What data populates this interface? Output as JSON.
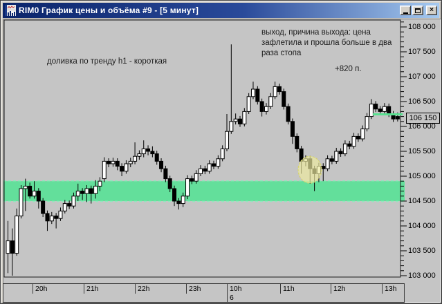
{
  "window": {
    "title": "RIM0 График цены и объёма #9 - [5 минут]",
    "controls": {
      "minimize": "_",
      "maximize": "▢",
      "close": "×"
    }
  },
  "annotations": {
    "trade_note": "доливка по тренду h1 - короткая",
    "exit_note_lines": [
      "выход, причина выхода: цена",
      "зафлетила и прошла больше в два",
      "раза стопа"
    ],
    "profit_note": "+820 п."
  },
  "colors": {
    "zone_green": "#63df9b",
    "zone_edge_green": "#8debbc",
    "price_line_green": "#59e090",
    "highlight_yellow_fill": "#efec9f",
    "highlight_yellow_edge": "#d6d370",
    "chart_bg": "#c5c5c5",
    "candle_up": "#ffffff",
    "candle_down": "#000000",
    "candle_stroke": "#000000"
  },
  "chart_data": {
    "type": "candlestick",
    "instrument": "RIM0",
    "timeframe": "5 минут",
    "y_axis": {
      "min": 103000,
      "max": 108000,
      "major_step": 500,
      "minor_step": 100,
      "tick_labels": [
        "108 000",
        "107 500",
        "107 000",
        "106 500",
        "106 000",
        "105 500",
        "105 000",
        "104 500",
        "104 000",
        "103 500",
        "103 000"
      ]
    },
    "x_axis": {
      "hour_labels": [
        "20h",
        "21h",
        "22h",
        "23h",
        "10h",
        "11h",
        "12h",
        "13h"
      ],
      "date_label": "6"
    },
    "current_price": {
      "label": "106 150",
      "value": 106150
    },
    "support_zone": {
      "price_top": 104900,
      "price_bottom": 104500
    },
    "highlight_ellipse": {
      "price_high": 105400,
      "price_low": 104860
    },
    "candles_ohlc": [
      [
        103450,
        104100,
        103050,
        103700
      ],
      [
        103700,
        103950,
        103000,
        103450
      ],
      [
        103450,
        104350,
        103400,
        104200
      ],
      [
        104200,
        104820,
        104150,
        104750
      ],
      [
        104750,
        104950,
        104300,
        104800
      ],
      [
        104800,
        104870,
        104550,
        104600
      ],
      [
        104600,
        104900,
        104550,
        104700
      ],
      [
        104700,
        104760,
        104350,
        104500
      ],
      [
        104500,
        104560,
        104180,
        104250
      ],
      [
        104250,
        104310,
        103900,
        104100
      ],
      [
        104100,
        104280,
        104040,
        104200
      ],
      [
        104200,
        104260,
        103950,
        104150
      ],
      [
        104150,
        104370,
        104100,
        104300
      ],
      [
        104300,
        104520,
        104250,
        104450
      ],
      [
        104450,
        104510,
        104340,
        104400
      ],
      [
        104400,
        104670,
        104350,
        104600
      ],
      [
        104600,
        104850,
        104500,
        104700
      ],
      [
        104700,
        104760,
        104520,
        104650
      ],
      [
        104650,
        104820,
        104480,
        104750
      ],
      [
        104750,
        104810,
        104450,
        104650
      ],
      [
        104650,
        104920,
        104550,
        104800
      ],
      [
        104800,
        104980,
        104700,
        104900
      ],
      [
        104950,
        105380,
        104880,
        105300
      ],
      [
        105300,
        105360,
        105180,
        105250
      ],
      [
        105250,
        105370,
        105190,
        105300
      ],
      [
        105300,
        105360,
        105120,
        105200
      ],
      [
        105200,
        105260,
        105000,
        105100
      ],
      [
        105100,
        105320,
        105050,
        105250
      ],
      [
        105250,
        105370,
        105180,
        105300
      ],
      [
        105300,
        105680,
        105240,
        105400
      ],
      [
        105400,
        105520,
        105330,
        105450
      ],
      [
        105450,
        105720,
        105380,
        105550
      ],
      [
        105550,
        105620,
        105420,
        105500
      ],
      [
        105500,
        105600,
        105380,
        105450
      ],
      [
        105450,
        105510,
        105230,
        105300
      ],
      [
        105300,
        105360,
        105080,
        105150
      ],
      [
        105150,
        105210,
        104880,
        104950
      ],
      [
        104950,
        105010,
        104680,
        104750
      ],
      [
        104750,
        104810,
        104400,
        104500
      ],
      [
        104500,
        104560,
        104330,
        104450
      ],
      [
        104450,
        104670,
        104380,
        104600
      ],
      [
        104600,
        105020,
        104540,
        104950
      ],
      [
        104950,
        105010,
        104840,
        104900
      ],
      [
        104900,
        105120,
        104850,
        105050
      ],
      [
        105050,
        105220,
        105000,
        105150
      ],
      [
        105150,
        105210,
        105040,
        105100
      ],
      [
        105100,
        105320,
        105050,
        105250
      ],
      [
        105250,
        105310,
        105140,
        105200
      ],
      [
        105200,
        105420,
        105150,
        105350
      ],
      [
        105350,
        105620,
        105300,
        105550
      ],
      [
        105550,
        106250,
        105500,
        105900
      ],
      [
        105900,
        107650,
        105850,
        106100
      ],
      [
        106100,
        106260,
        106040,
        106150
      ],
      [
        106150,
        106210,
        105990,
        106050
      ],
      [
        106050,
        106370,
        106000,
        106300
      ],
      [
        106300,
        106670,
        106250,
        106600
      ],
      [
        106600,
        106900,
        106550,
        106750
      ],
      [
        106750,
        106810,
        106440,
        106500
      ],
      [
        106500,
        106560,
        106200,
        106300
      ],
      [
        106300,
        106470,
        106240,
        106400
      ],
      [
        106400,
        106670,
        106350,
        106600
      ],
      [
        106600,
        106900,
        106550,
        106800
      ],
      [
        106800,
        106860,
        106640,
        106700
      ],
      [
        106700,
        106760,
        106340,
        106400
      ],
      [
        106400,
        106460,
        106040,
        106100
      ],
      [
        106100,
        106160,
        105650,
        105800
      ],
      [
        105800,
        105860,
        105480,
        105550
      ],
      [
        105550,
        105610,
        105050,
        105300
      ],
      [
        105300,
        105420,
        105200,
        105350
      ],
      [
        105350,
        105410,
        104850,
        105150
      ],
      [
        105150,
        105210,
        104700,
        105050
      ],
      [
        105050,
        105270,
        104880,
        105200
      ],
      [
        105200,
        105260,
        104900,
        105150
      ],
      [
        105150,
        105420,
        105100,
        105350
      ],
      [
        105350,
        105410,
        105240,
        105300
      ],
      [
        105300,
        105570,
        105250,
        105500
      ],
      [
        105500,
        105560,
        105390,
        105450
      ],
      [
        105450,
        105720,
        105400,
        105650
      ],
      [
        105650,
        105710,
        105540,
        105600
      ],
      [
        105600,
        105870,
        105550,
        105800
      ],
      [
        105800,
        105860,
        105690,
        105750
      ],
      [
        105750,
        106020,
        105700,
        105950
      ],
      [
        105950,
        106270,
        105900,
        106200
      ],
      [
        106200,
        106550,
        106150,
        106450
      ],
      [
        106450,
        106510,
        106290,
        106350
      ],
      [
        106350,
        106410,
        106240,
        106300
      ],
      [
        106300,
        106470,
        106250,
        106400
      ],
      [
        106400,
        106460,
        106190,
        106250
      ],
      [
        106250,
        106310,
        106090,
        106150
      ],
      [
        106200,
        106280,
        106100,
        106150
      ]
    ]
  }
}
